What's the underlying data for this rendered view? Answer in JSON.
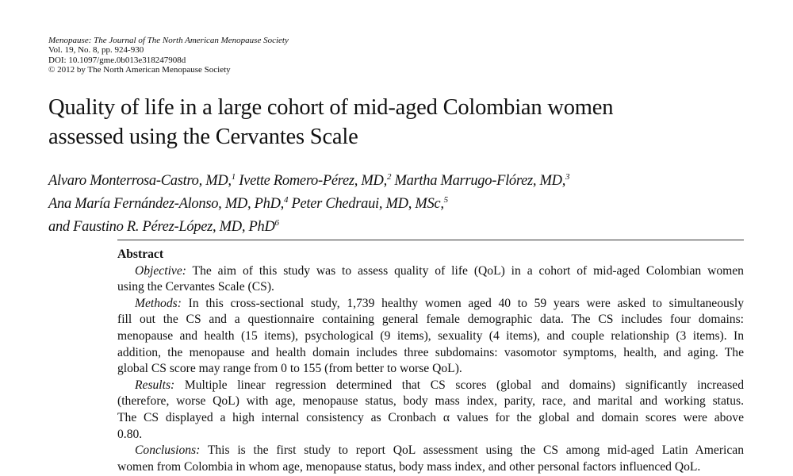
{
  "header": {
    "journal": "Menopause: The Journal of The North American Menopause Society",
    "volume": "Vol. 19, No. 8, pp. 924-930",
    "doi": "DOI: 10.1097/gme.0b013e318247908d",
    "copyright": "© 2012 by The North American Menopause Society"
  },
  "title": [
    "Quality of life in a large cohort of mid-aged Colombian women",
    "assessed using the Cervantes Scale"
  ],
  "authors": [
    {
      "name": "Alvaro Monterrosa-Castro, MD,",
      "sup": "1"
    },
    {
      "name": "Ivette Romero-Pérez, MD,",
      "sup": "2"
    },
    {
      "name": "Martha Marrugo-Flórez, MD,",
      "sup": "3"
    },
    {
      "name": "Ana María Fernández-Alonso, MD, PhD,",
      "sup": "4"
    },
    {
      "name": "Peter Chedraui, MD, MSc,",
      "sup": "5"
    },
    {
      "name": "and Faustino R. Pérez-López, MD, PhD",
      "sup": "6"
    }
  ],
  "abstract": {
    "heading": "Abstract",
    "paragraphs": [
      {
        "label": "Objective:",
        "lines": [
          "The aim of this study was to assess quality of life (QoL) in a cohort of mid-aged Colombian women",
          "using the Cervantes Scale (CS)."
        ]
      },
      {
        "label": "Methods:",
        "lines": [
          "In this cross-sectional study, 1,739 healthy women aged 40 to 59 years were asked to simultaneously",
          "fill out the CS and a questionnaire containing general female demographic data. The CS includes four domains:",
          "menopause and health (15 items), psychological (9 items), sexuality (4 items), and couple relationship (3 items). In",
          "addition, the menopause and health domain includes three subdomains: vasomotor symptoms, health, and aging. The",
          "global CS score may range from 0 to 155 (from better to worse QoL)."
        ]
      },
      {
        "label": "Results:",
        "lines": [
          "Multiple linear regression determined that CS scores (global and domains) significantly increased",
          "(therefore, worse QoL) with age, menopause status, body mass index, parity, race, and marital and working status.",
          "The CS displayed a high internal consistency as Cronbach α values for the global and domain scores were above",
          "0.80."
        ]
      },
      {
        "label": "Conclusions:",
        "lines": [
          "This is the first study to report QoL assessment using the CS among mid-aged Latin American",
          "women from Colombia in whom age, menopause status, body mass index, and other personal factors influenced QoL."
        ]
      }
    ]
  }
}
